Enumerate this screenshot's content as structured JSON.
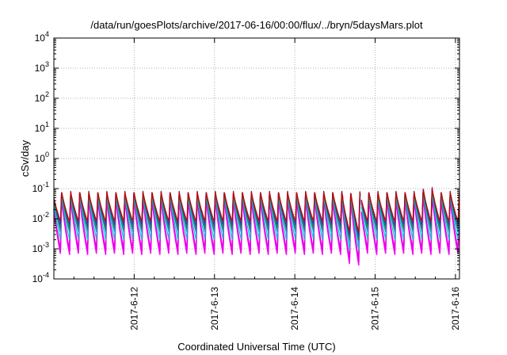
{
  "chart_data": {
    "type": "line",
    "title": "/data/run/goesPlots/archive/2017-06-16/00:00/flux/../bryn/5daysMars.plot",
    "xlabel": "Coordinated Universal Time (UTC)",
    "ylabel": "cSv/day",
    "yscale": "log",
    "ylim": [
      0.0001,
      10000
    ],
    "xlim_days": [
      11.0,
      16.05
    ],
    "y_ticks": [
      {
        "base": "10",
        "exp": "-4",
        "value": 0.0001
      },
      {
        "base": "10",
        "exp": "-3",
        "value": 0.001
      },
      {
        "base": "10",
        "exp": "-2",
        "value": 0.01
      },
      {
        "base": "10",
        "exp": "-1",
        "value": 0.1
      },
      {
        "base": "10",
        "exp": "0",
        "value": 1
      },
      {
        "base": "10",
        "exp": "1",
        "value": 10
      },
      {
        "base": "10",
        "exp": "2",
        "value": 100
      },
      {
        "base": "10",
        "exp": "3",
        "value": 1000
      },
      {
        "base": "10",
        "exp": "4",
        "value": 10000
      }
    ],
    "x_ticks": [
      {
        "label": "2017-6-12",
        "day": 12
      },
      {
        "label": "2017-6-13",
        "day": 13
      },
      {
        "label": "2017-6-14",
        "day": 14
      },
      {
        "label": "2017-6-15",
        "day": 15
      },
      {
        "label": "2017-6-16",
        "day": 16
      }
    ],
    "grid": true,
    "legend": "none",
    "sawtooth_period_hours": 2.7,
    "data_gap_days": [
      14.82,
      14.83
    ],
    "series": [
      {
        "color": "#ff00ff",
        "peak": 0.055,
        "trough": 0.00065
      },
      {
        "color": "#e600e6",
        "peak": 0.06,
        "trough": 0.00085
      },
      {
        "color": "#00cccc",
        "peak": 0.07,
        "trough": 0.002
      },
      {
        "color": "#1e90ff",
        "peak": 0.08,
        "trough": 0.0035
      },
      {
        "color": "#228b22",
        "peak": 0.075,
        "trough": 0.0045
      },
      {
        "color": "#1e3ccc",
        "peak": 0.09,
        "trough": 0.006
      },
      {
        "color": "#cc0000",
        "peak": 0.085,
        "trough": 0.008
      }
    ]
  }
}
